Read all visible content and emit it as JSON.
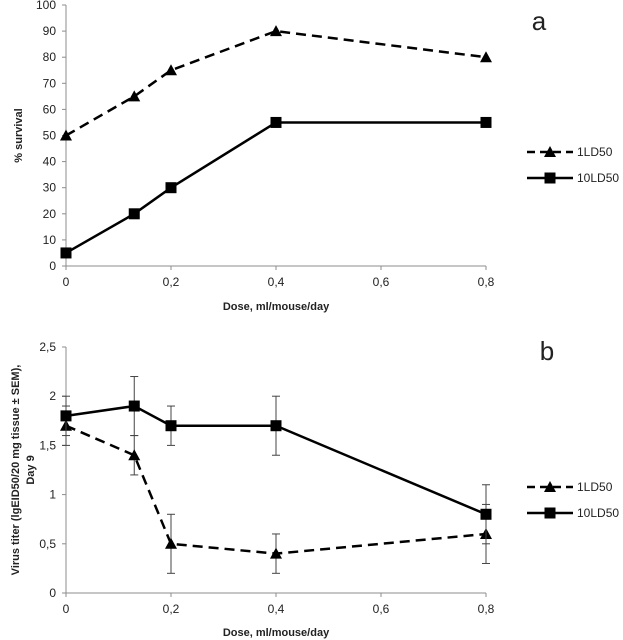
{
  "chart_data": [
    {
      "type": "line",
      "panel_label": "a",
      "xlabel": "Dose, ml/mouse/day",
      "ylabel": "% survival",
      "xlim": [
        0,
        0.8
      ],
      "ylim": [
        0,
        100
      ],
      "x_ticks": [
        "0",
        "0,2",
        "0,4",
        "0,6",
        "0,8"
      ],
      "y_ticks": [
        "0",
        "10",
        "20",
        "30",
        "40",
        "50",
        "60",
        "70",
        "80",
        "90",
        "100"
      ],
      "grid": false,
      "legend_position": "right",
      "series": [
        {
          "name": "1LD50",
          "style": "dashed",
          "marker": "triangle",
          "x": [
            0,
            0.13,
            0.2,
            0.4,
            0.8
          ],
          "y": [
            50,
            65,
            75,
            90,
            80
          ]
        },
        {
          "name": "10LD50",
          "style": "solid",
          "marker": "square",
          "x": [
            0,
            0.13,
            0.2,
            0.4,
            0.8
          ],
          "y": [
            5,
            20,
            30,
            55,
            55
          ]
        }
      ]
    },
    {
      "type": "line",
      "panel_label": "b",
      "xlabel": "Dose, ml/mouse/day",
      "ylabel": "Virus titer (lgEID50/20 mg tissue ± SEM), Day 9",
      "ylabel_lines": [
        "Virus titer (lgEID50/20 mg tissue ± SEM),",
        "Day  9"
      ],
      "xlim": [
        0,
        0.8
      ],
      "ylim": [
        0,
        2.5
      ],
      "x_ticks": [
        "0",
        "0,2",
        "0,4",
        "0,6",
        "0,8"
      ],
      "y_ticks": [
        "0",
        "0,5",
        "1",
        "1,5",
        "2",
        "2,5"
      ],
      "grid": false,
      "legend_position": "right",
      "series": [
        {
          "name": "1LD50",
          "style": "dashed",
          "marker": "triangle",
          "x": [
            0,
            0.13,
            0.2,
            0.4,
            0.8
          ],
          "y": [
            1.7,
            1.4,
            0.5,
            0.4,
            0.6
          ],
          "error": [
            0.2,
            0.2,
            0.3,
            0.2,
            0.3
          ]
        },
        {
          "name": "10LD50",
          "style": "solid",
          "marker": "square",
          "x": [
            0,
            0.13,
            0.2,
            0.4,
            0.8
          ],
          "y": [
            1.8,
            1.9,
            1.7,
            1.7,
            0.8
          ],
          "error": [
            0.2,
            0.3,
            0.2,
            0.3,
            0.3
          ]
        }
      ]
    }
  ]
}
